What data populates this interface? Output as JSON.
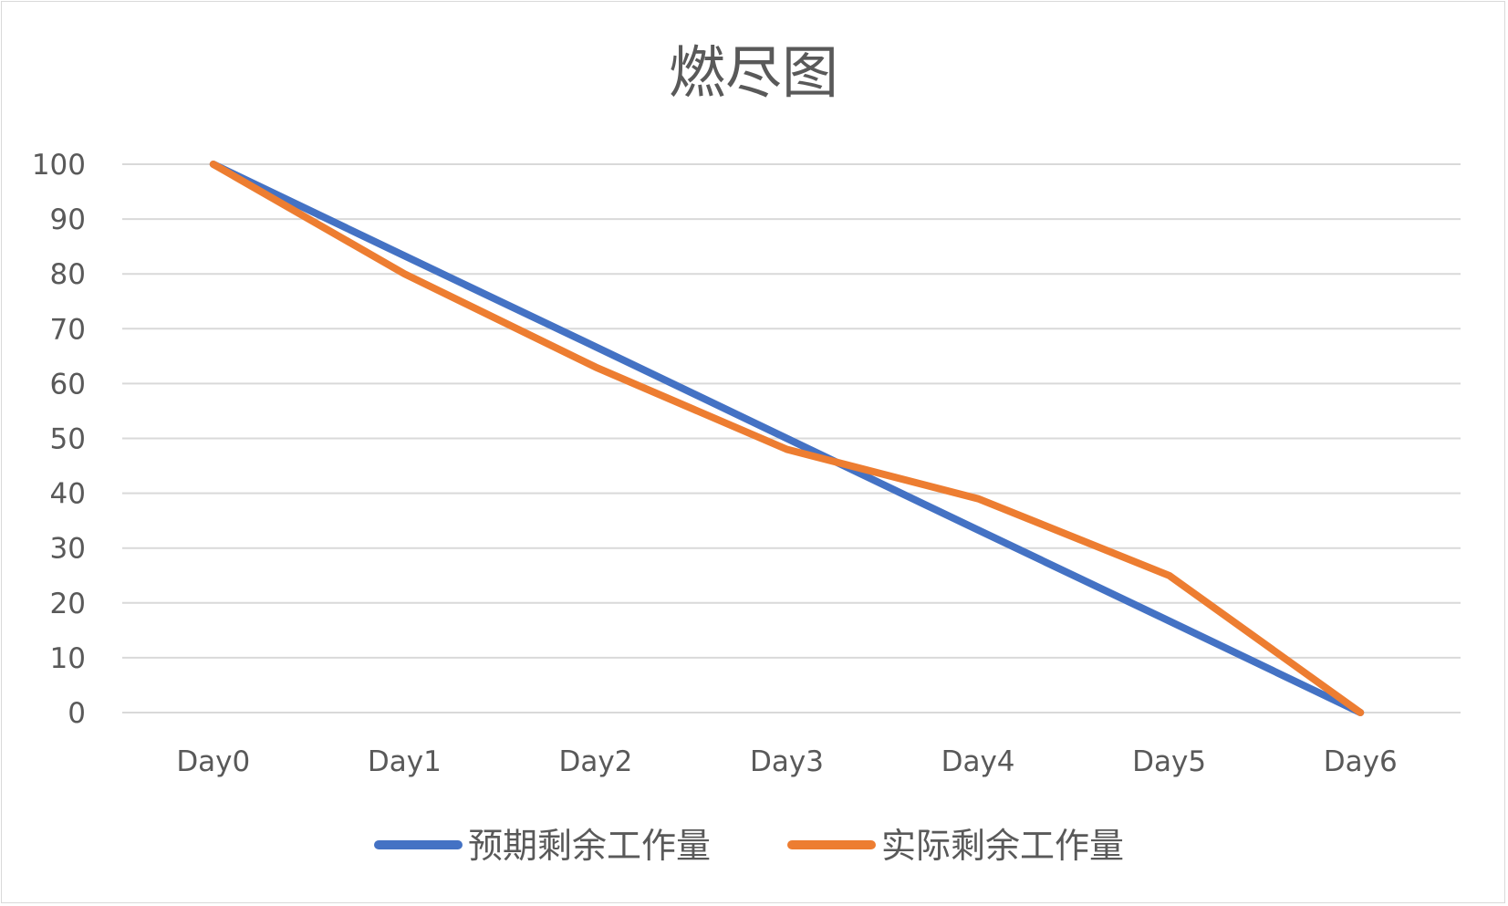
{
  "chart_data": {
    "type": "line",
    "title": "燃尽图",
    "xlabel": "",
    "ylabel": "",
    "categories": [
      "Day0",
      "Day1",
      "Day2",
      "Day3",
      "Day4",
      "Day5",
      "Day6"
    ],
    "ylim": [
      0,
      100
    ],
    "yticks": [
      0,
      10,
      20,
      30,
      40,
      50,
      60,
      70,
      80,
      90,
      100
    ],
    "grid": true,
    "legend_position": "bottom",
    "series": [
      {
        "name": "预期剩余工作量",
        "color": "#4472c4",
        "values": [
          100,
          83.3,
          66.7,
          50,
          33.3,
          16.7,
          0
        ]
      },
      {
        "name": "实际剩余工作量",
        "color": "#ed7d31",
        "values": [
          100,
          80,
          63,
          48,
          39,
          25,
          0
        ]
      }
    ]
  }
}
